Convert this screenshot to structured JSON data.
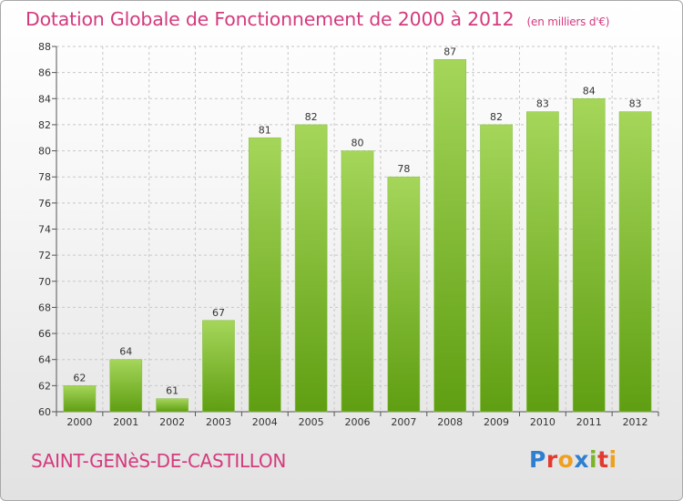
{
  "header": {
    "title": "Dotation Globale de Fonctionnement de 2000 à 2012",
    "unit": "(en milliers d'€)"
  },
  "footer": {
    "commune": "SAINT-GENèS-DE-CASTILLON",
    "brand_letters": [
      "P",
      "r",
      "o",
      "x",
      "i",
      "t",
      "i"
    ],
    "brand_colors": [
      "#2f7fd0",
      "#e23a2e",
      "#f0a020",
      "#2f7fd0",
      "#7ab528",
      "#e23a2e",
      "#f0a020"
    ]
  },
  "colors": {
    "title": "#d43a7e",
    "bar_top": "#a5d65a",
    "bar_bottom": "#5f9e12",
    "grid": "#c8c8c8"
  },
  "chart_data": {
    "type": "bar",
    "title": "Dotation Globale de Fonctionnement de 2000 à 2012",
    "subtitle": "(en milliers d'€)",
    "categories": [
      "2000",
      "2001",
      "2002",
      "2003",
      "2004",
      "2005",
      "2006",
      "2007",
      "2008",
      "2009",
      "2010",
      "2011",
      "2012"
    ],
    "values": [
      62,
      64,
      61,
      67,
      81,
      82,
      80,
      78,
      87,
      82,
      83,
      84,
      83
    ],
    "ylim": [
      60,
      88
    ],
    "yticks": [
      60,
      62,
      64,
      66,
      68,
      70,
      72,
      74,
      76,
      78,
      80,
      82,
      84,
      86,
      88
    ],
    "grid": true,
    "data_labels": true
  }
}
